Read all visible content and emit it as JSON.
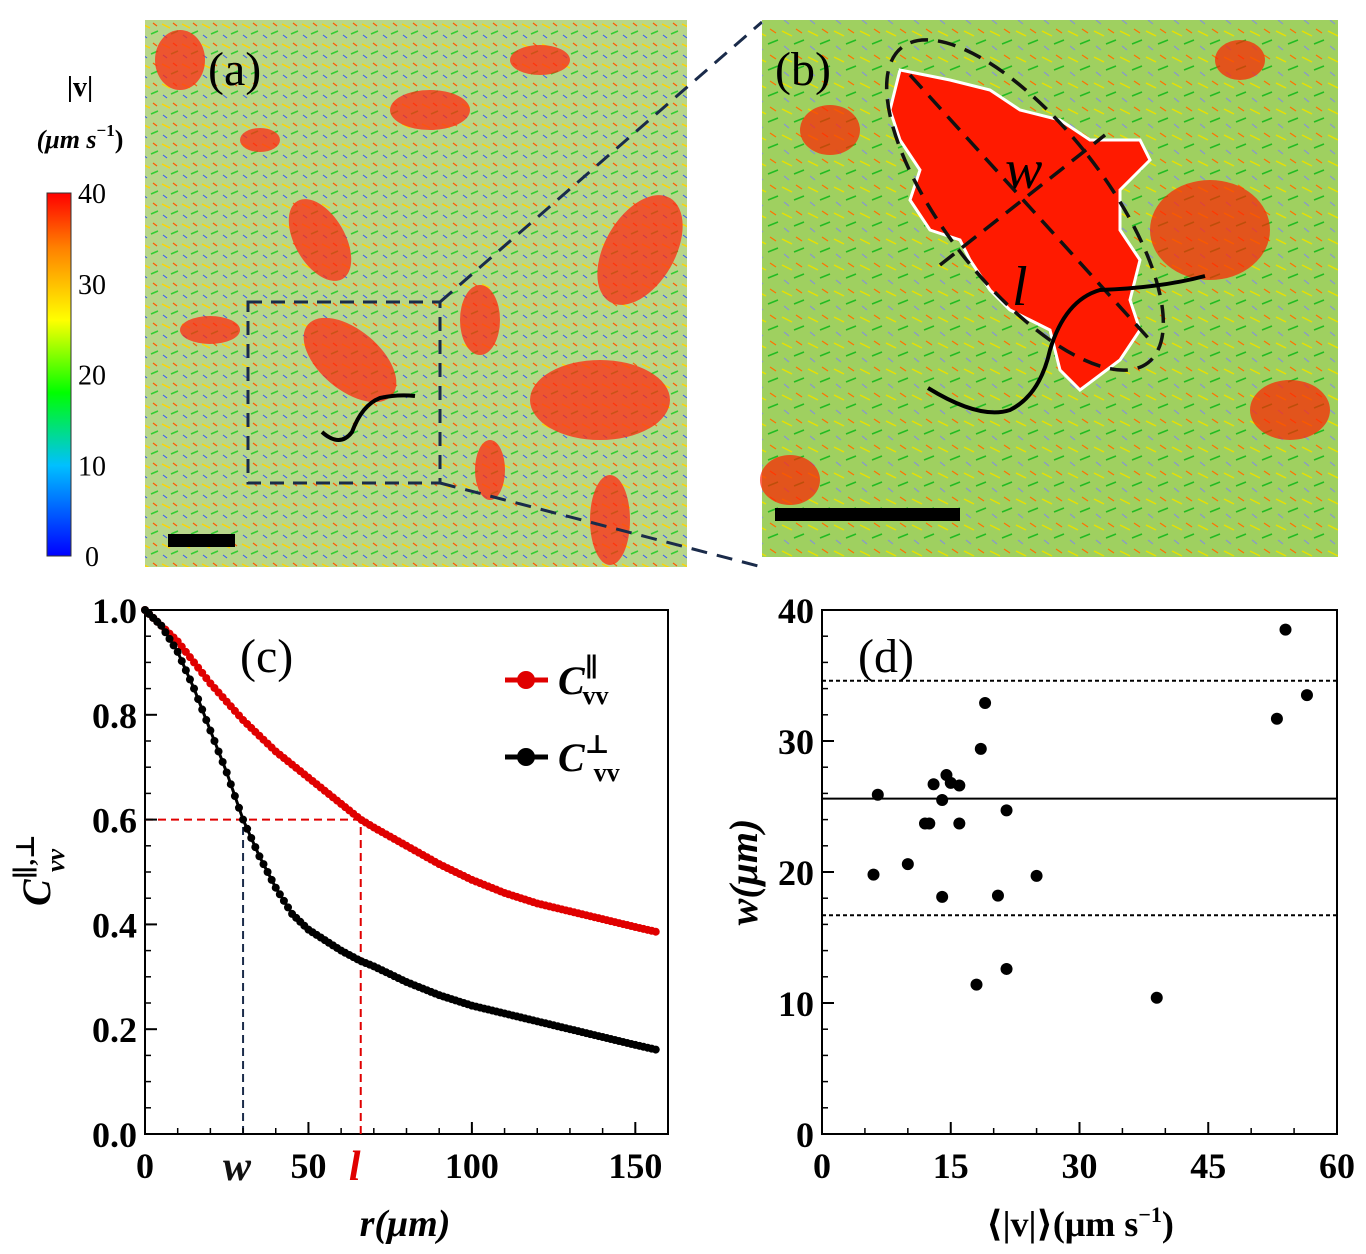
{
  "panels": {
    "a": {
      "label": "(a)"
    },
    "b": {
      "label": "(b)"
    }
  },
  "colorbar": {
    "title_line1": "|v|",
    "title_line2": "(μm s",
    "title_exp": "−1",
    "title_close": ")",
    "ticks": [
      "40",
      "30",
      "20",
      "10",
      "0"
    ],
    "min": 0,
    "max": 40,
    "colors": [
      "#0000ff",
      "#00c0ff",
      "#00ff00",
      "#ffff00",
      "#ff8000",
      "#ff0000"
    ]
  },
  "panel_b_annotations": {
    "w_label": "w",
    "l_label": "l"
  },
  "chart_data": [
    {
      "type": "line",
      "panel_label": "(c)",
      "xlabel": "r(μm)",
      "ylabel": "C∥,⊥ vv",
      "xlim": [
        0,
        160
      ],
      "ylim": [
        0,
        1.0
      ],
      "x_ticks": [
        0,
        50,
        100,
        150
      ],
      "y_ticks": [
        0.0,
        0.2,
        0.4,
        0.6,
        0.8,
        1.0
      ],
      "y_tick_labels": [
        "0.0",
        "0.2",
        "0.4",
        "0.6",
        "0.8",
        "1.0"
      ],
      "extra_x_tick_labels": [
        {
          "text": "w",
          "x": 30,
          "color": "#111111"
        },
        {
          "text": "l",
          "x": 66,
          "color": "#e00000"
        }
      ],
      "series": [
        {
          "name": "C∥vv",
          "legend": "C",
          "legend_sup": "∥",
          "legend_sub": "vv",
          "color": "#e00000",
          "x": [
            0,
            10,
            20,
            30,
            40,
            50,
            60,
            66,
            70,
            80,
            90,
            100,
            110,
            120,
            130,
            140,
            150,
            157
          ],
          "values": [
            1.0,
            0.94,
            0.86,
            0.79,
            0.73,
            0.68,
            0.63,
            0.6,
            0.585,
            0.55,
            0.515,
            0.485,
            0.46,
            0.44,
            0.425,
            0.41,
            0.395,
            0.385
          ]
        },
        {
          "name": "C⊥vv",
          "legend": "C",
          "legend_sup": "⊥",
          "legend_sub": "vv",
          "color": "#000000",
          "x": [
            0,
            5,
            10,
            15,
            20,
            25,
            30,
            35,
            40,
            45,
            50,
            60,
            66,
            70,
            80,
            90,
            100,
            110,
            120,
            130,
            140,
            150,
            157
          ],
          "values": [
            1.0,
            0.97,
            0.92,
            0.85,
            0.77,
            0.69,
            0.6,
            0.53,
            0.47,
            0.42,
            0.39,
            0.35,
            0.33,
            0.32,
            0.29,
            0.265,
            0.245,
            0.23,
            0.215,
            0.2,
            0.185,
            0.17,
            0.16
          ]
        }
      ],
      "reference_lines": [
        {
          "axis": "y",
          "value": 0.6,
          "from": 0,
          "to": 66,
          "color": "#e00000",
          "style": "dashed"
        },
        {
          "axis": "x",
          "value": 30,
          "from": 0,
          "to": 0.6,
          "color": "#1a2b4a",
          "style": "dashed"
        },
        {
          "axis": "x",
          "value": 66,
          "from": 0,
          "to": 0.6,
          "color": "#e00000",
          "style": "dashed"
        }
      ]
    },
    {
      "type": "scatter",
      "panel_label": "(d)",
      "xlabel": "⟨|v|⟩(μm s",
      "xlabel_exp": "−1",
      "xlabel_close": ")",
      "ylabel": "w(μm)",
      "xlim": [
        0,
        60
      ],
      "ylim": [
        0,
        40
      ],
      "x_ticks": [
        0,
        15,
        30,
        45,
        60
      ],
      "y_ticks": [
        0,
        10,
        20,
        30,
        40
      ],
      "points": {
        "x": [
          6,
          6.5,
          10,
          12,
          12.5,
          13,
          14,
          14,
          14.5,
          15,
          16,
          16,
          18,
          18.5,
          19,
          20.5,
          21.5,
          21.5,
          25,
          39,
          53,
          54,
          56.5
        ],
        "y": [
          19.8,
          25.9,
          20.6,
          23.7,
          23.7,
          26.7,
          18.1,
          25.5,
          27.4,
          26.8,
          26.6,
          23.7,
          11.4,
          29.4,
          32.9,
          18.2,
          24.7,
          12.6,
          19.7,
          10.4,
          31.7,
          38.5,
          33.5
        ]
      },
      "hlines": [
        {
          "value": 34.6,
          "style": "dotted"
        },
        {
          "value": 25.6,
          "style": "solid"
        },
        {
          "value": 16.7,
          "style": "dotted"
        }
      ]
    }
  ]
}
